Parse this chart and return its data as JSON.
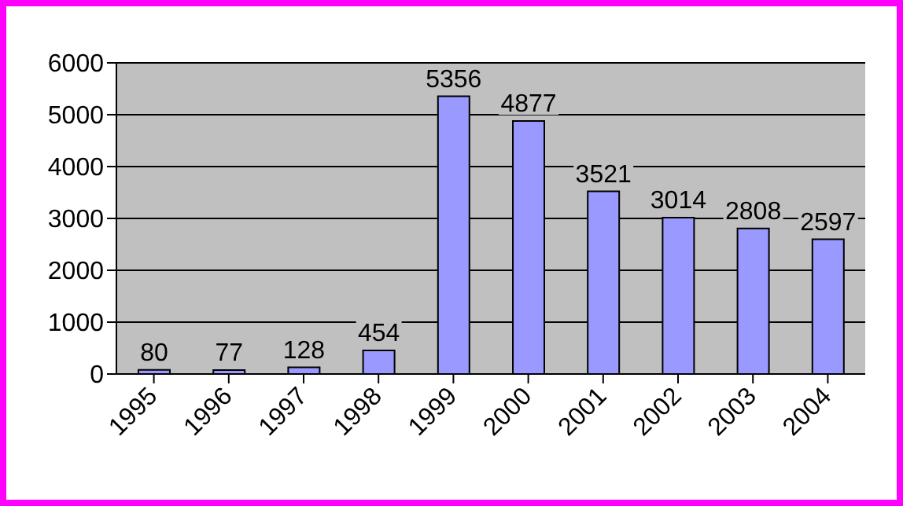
{
  "chart_data": {
    "type": "bar",
    "categories": [
      "1995",
      "1996",
      "1997",
      "1998",
      "1999",
      "2000",
      "2001",
      "2002",
      "2003",
      "2004"
    ],
    "values": [
      80,
      77,
      128,
      454,
      5356,
      4877,
      3521,
      3014,
      2808,
      2597
    ],
    "color": "#9999ff",
    "ylim": [
      0,
      6000
    ],
    "yticks": [
      0,
      1000,
      2000,
      3000,
      4000,
      5000,
      6000
    ],
    "grid": "y",
    "data_labels": true
  }
}
